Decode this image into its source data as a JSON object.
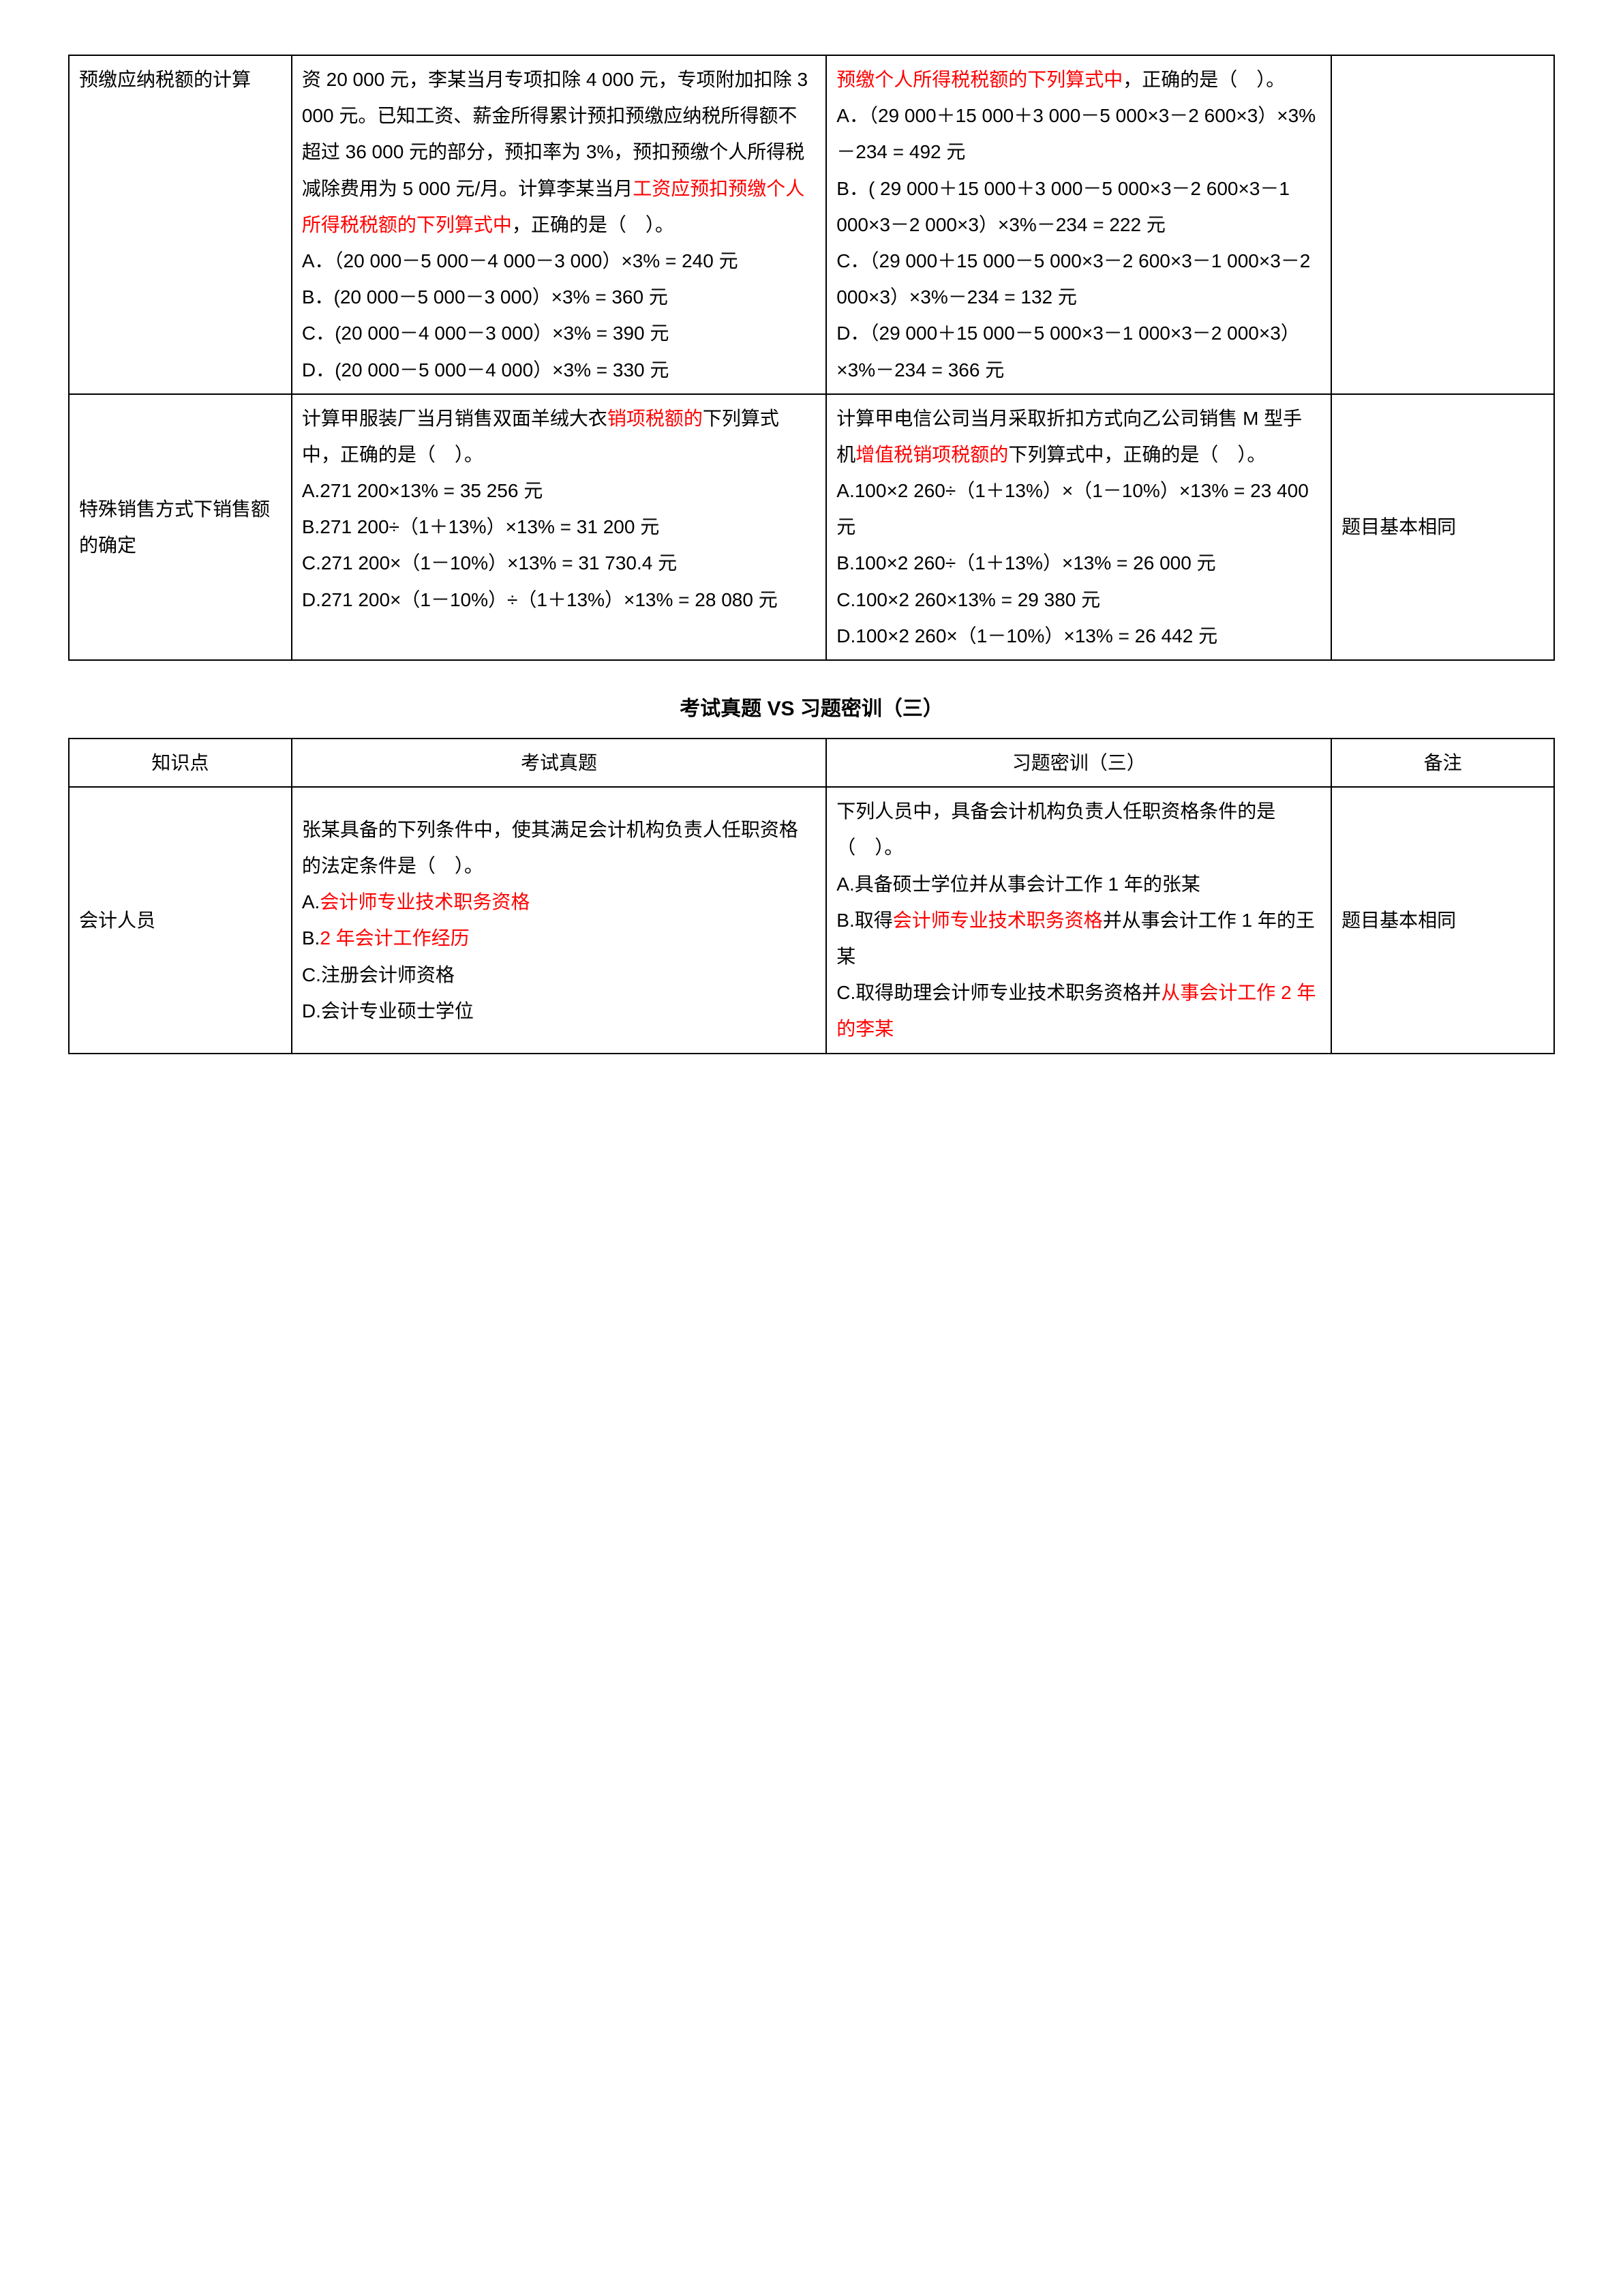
{
  "table1": {
    "rows": [
      {
        "topic": "预缴应纳税额的计算",
        "exam_intro": "资 20 000 元，李某当月专项扣除 4 000 元，专项附加扣除 3 000 元。已知工资、薪金所得累计预扣预缴应纳税所得额不超过 36 000 元的部分，预扣率为 3%，预扣预缴个人所得税减除费用为 5 000 元/月。计算李某当月",
        "exam_red1": "工资应预扣预缴个人所得税税额的下列算式中",
        "exam_post": "，正确的是（　）。",
        "exam_a": "A．（20 000－5 000－4 000－3 000）×3% = 240 元",
        "exam_b": "B．(20 000－5 000－3 000）×3% = 360 元",
        "exam_c": "C．(20 000－4 000－3 000）×3% = 390 元",
        "exam_d": "D．(20 000－5 000－4 000）×3% = 330 元",
        "drill_red1": "预缴个人所得税税额的下列算式中",
        "drill_post": "，正确的是（　）。",
        "drill_a": "A．（29 000＋15 000＋3 000－5 000×3－2 600×3）×3%－234 = 492 元",
        "drill_b": "B．( 29 000＋15 000＋3 000－5 000×3－2 600×3－1 000×3－2 000×3）×3%－234 = 222 元",
        "drill_c": "C．（29 000＋15 000－5 000×3－2 600×3－1 000×3－2 000×3）×3%－234 = 132 元",
        "drill_d": "D．（29 000＋15 000－5 000×3－1 000×3－2 000×3）×3%－234 = 366 元",
        "note": ""
      },
      {
        "topic": "特殊销售方式下销售额的确定",
        "exam_intro_a": "计算甲服装厂当月销售双面羊绒大衣",
        "exam_red2": "销项税额的",
        "exam_intro_b": "下列算式中，正确的是（　）。",
        "exam_a": "A.271 200×13% = 35 256 元",
        "exam_b": "B.271 200÷（1＋13%）×13% = 31 200 元",
        "exam_c": "C.271 200×（1－10%）×13% = 31 730.4 元",
        "exam_d": "D.271 200×（1－10%）÷（1＋13%）×13% = 28 080 元",
        "drill_intro_a": "计算甲电信公司当月采取折扣方式向乙公司销售 M 型手机",
        "drill_red2": "增值税销项税额的",
        "drill_intro_b": "下列算式中，正确的是（　）。",
        "drill_a": "A.100×2 260÷（1＋13%）×（1－10%）×13% = 23 400 元",
        "drill_b": "B.100×2 260÷（1＋13%）×13% = 26 000 元",
        "drill_c": "C.100×2 260×13% = 29 380 元",
        "drill_d": "D.100×2 260×（1－10%）×13% = 26 442 元",
        "note": "题目基本相同"
      }
    ]
  },
  "section_title": "考试真题 VS 习题密训（三）",
  "table2": {
    "headers": {
      "a": "知识点",
      "b": "考试真题",
      "c": "习题密训（三）",
      "d": "备注"
    },
    "row": {
      "topic": "会计人员",
      "exam_intro": "张某具备的下列条件中，使其满足会计机构负责人任职资格的法定条件是（　）。",
      "exam_a_pre": "A.",
      "exam_a_red": "会计师专业技术职务资格",
      "exam_b_pre": "B.",
      "exam_b_red": "2 年会计工作经历",
      "exam_c": "C.注册会计师资格",
      "exam_d": "D.会计专业硕士学位",
      "drill_intro": "下列人员中，具备会计机构负责人任职资格条件的是（　）。",
      "drill_a": "A.具备硕士学位并从事会计工作 1 年的张某",
      "drill_b_pre": "B.取得",
      "drill_b_red": "会计师专业技术职务资格",
      "drill_b_post": "并从事会计工作 1 年的王某",
      "drill_c_pre": "C.取得助理会计师专业技术职务资格并",
      "drill_c_red": "从事会计工作 2 年的李某",
      "note": "题目基本相同"
    }
  },
  "colors": {
    "text": "#000000",
    "highlight": "#ff0000",
    "border": "#000000",
    "bg": "#ffffff"
  }
}
